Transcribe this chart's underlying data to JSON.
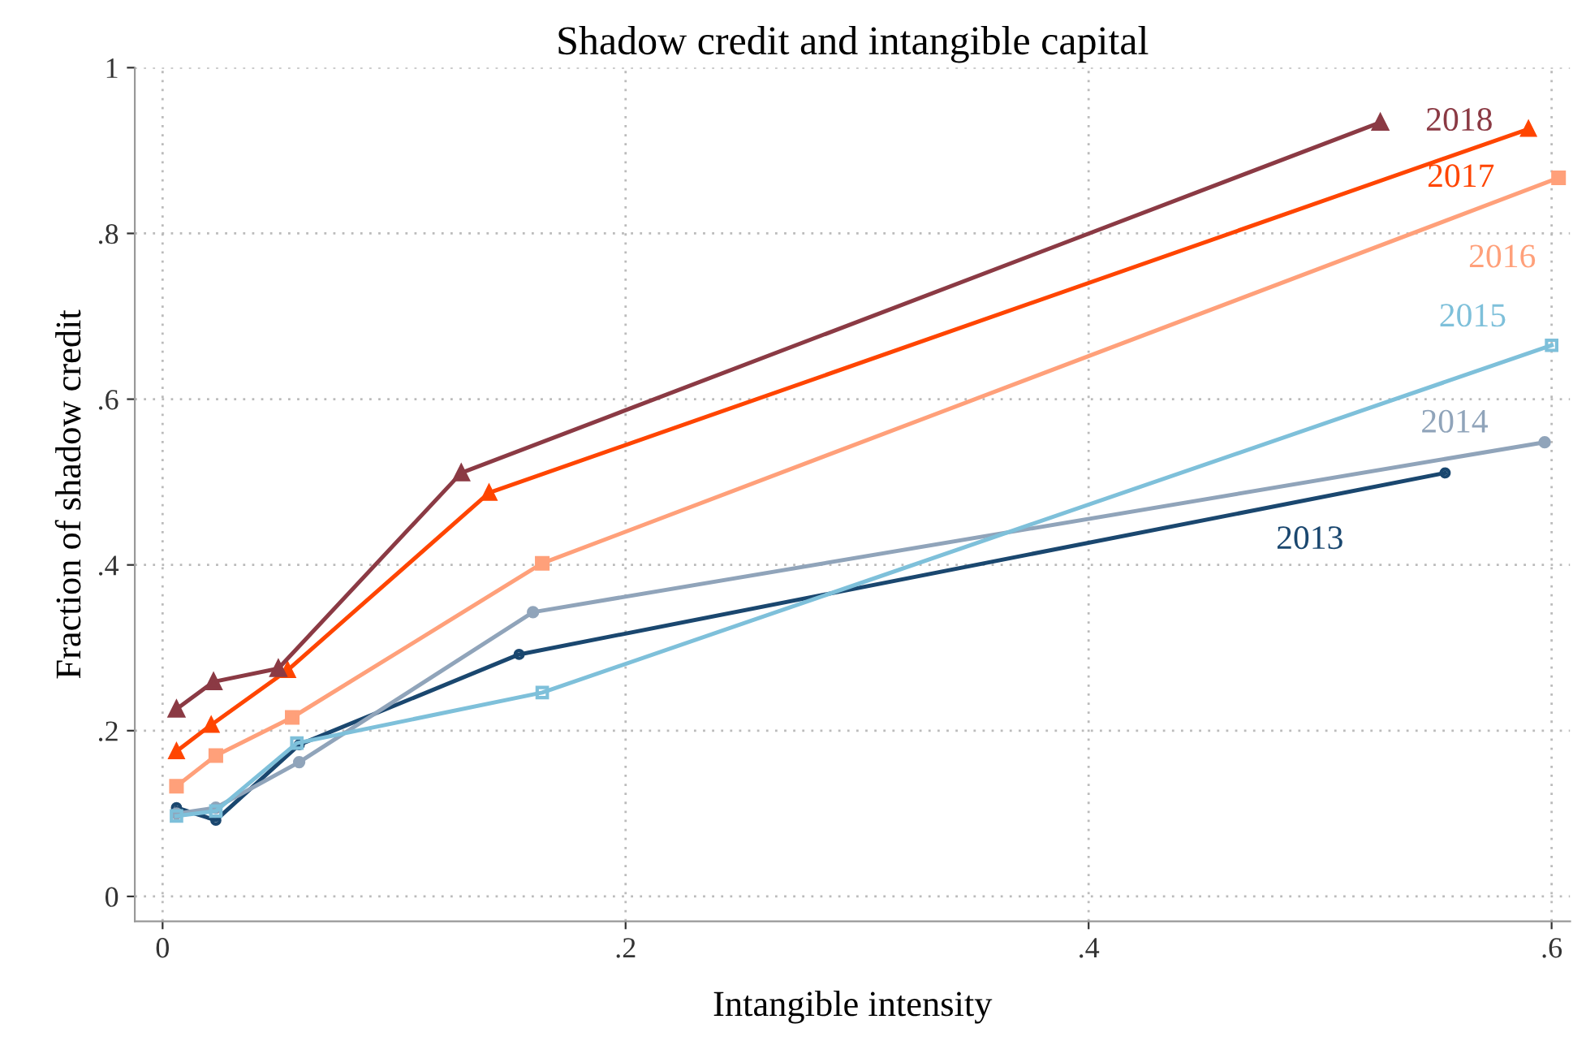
{
  "chart_data": {
    "type": "line",
    "title": "Shadow credit and intangible capital",
    "xlabel": "Intangible intensity",
    "ylabel": "Fraction of shadow credit",
    "xlim": [
      -0.012,
      0.608
    ],
    "ylim": [
      -0.03,
      1.0
    ],
    "xticks": [
      0,
      {
        "value": 0.2,
        "label": ".2"
      },
      {
        "value": 0.4,
        "label": ".4"
      },
      {
        "value": 0.6,
        "label": ".6"
      }
    ],
    "yticks": [
      0,
      {
        "value": 0.2,
        "label": ".2"
      },
      {
        "value": 0.4,
        "label": ".4"
      },
      {
        "value": 0.6,
        "label": ".6"
      },
      {
        "value": 0.8,
        "label": ".8"
      },
      1
    ],
    "grid": true,
    "legend": false,
    "series": [
      {
        "name": "2018",
        "color": "#8b3a44",
        "marker": "triangle",
        "x": [
          0.006,
          0.022,
          0.05,
          0.129,
          0.526
        ],
        "values": [
          0.226,
          0.259,
          0.275,
          0.511,
          0.934
        ]
      },
      {
        "name": "2017",
        "color": "#ff4500",
        "marker": "triangle",
        "x": [
          0.006,
          0.021,
          0.054,
          0.141,
          0.59
        ],
        "values": [
          0.175,
          0.207,
          0.273,
          0.487,
          0.926
        ]
      },
      {
        "name": "2016",
        "color": "#ffa07a",
        "marker": "square",
        "x": [
          0.006,
          0.023,
          0.056,
          0.164,
          0.603
        ],
        "values": [
          0.133,
          0.17,
          0.216,
          0.402,
          0.867
        ]
      },
      {
        "name": "2015",
        "color": "#7ec0da",
        "marker": "square",
        "x": [
          0.006,
          0.023,
          0.058,
          0.164,
          0.6
        ],
        "values": [
          0.097,
          0.103,
          0.185,
          0.246,
          0.665
        ]
      },
      {
        "name": "2014",
        "color": "#90a4ba",
        "marker": "circle",
        "x": [
          0.006,
          0.023,
          0.059,
          0.16,
          0.597
        ],
        "values": [
          0.1,
          0.107,
          0.162,
          0.343,
          0.548
        ]
      },
      {
        "name": "2013",
        "color": "#1a476f",
        "marker": "circle",
        "x": [
          0.006,
          0.023,
          0.059,
          0.154,
          0.554
        ],
        "values": [
          0.107,
          0.092,
          0.183,
          0.292,
          0.511
        ]
      }
    ]
  }
}
